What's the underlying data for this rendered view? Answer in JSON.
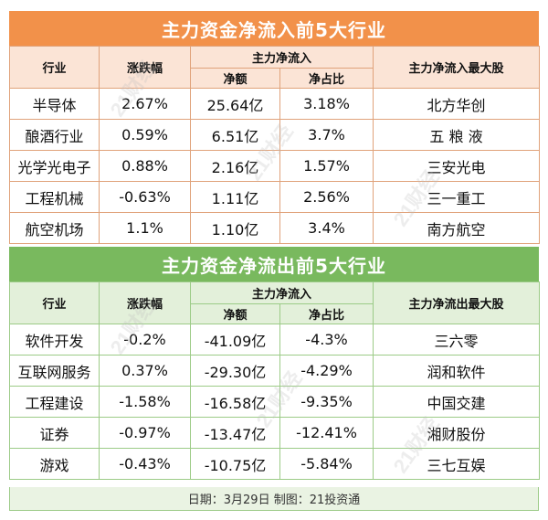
{
  "inflow": {
    "title": "主力资金净流入前5大行业",
    "headers": {
      "industry": "行业",
      "change": "涨跌幅",
      "main_flow": "主力净流入",
      "net_amount": "净额",
      "net_ratio": "净占比",
      "top_stock": "主力净流入最大股"
    },
    "rows": [
      {
        "industry": "半导体",
        "change": "2.67%",
        "amount": "25.64亿",
        "ratio": "3.18%",
        "stock": "北方华创"
      },
      {
        "industry": "酿酒行业",
        "change": "0.59%",
        "amount": "6.51亿",
        "ratio": "3.7%",
        "stock": "五 粮 液"
      },
      {
        "industry": "光学光电子",
        "change": "0.88%",
        "amount": "2.16亿",
        "ratio": "1.57%",
        "stock": "三安光电"
      },
      {
        "industry": "工程机械",
        "change": "-0.63%",
        "amount": "1.11亿",
        "ratio": "2.56%",
        "stock": "三一重工"
      },
      {
        "industry": "航空机场",
        "change": "1.1%",
        "amount": "1.10亿",
        "ratio": "3.4%",
        "stock": "南方航空"
      }
    ]
  },
  "outflow": {
    "title": "主力资金净流出前5大行业",
    "headers": {
      "industry": "行业",
      "change": "涨跌幅",
      "main_flow": "主力净流入",
      "net_amount": "净额",
      "net_ratio": "净占比",
      "top_stock": "主力净流出最大股"
    },
    "rows": [
      {
        "industry": "软件开发",
        "change": "-0.2%",
        "amount": "-41.09亿",
        "ratio": "-4.3%",
        "stock": "三六零"
      },
      {
        "industry": "互联网服务",
        "change": "0.37%",
        "amount": "-29.30亿",
        "ratio": "-4.29%",
        "stock": "润和软件"
      },
      {
        "industry": "工程建设",
        "change": "-1.58%",
        "amount": "-16.58亿",
        "ratio": "-9.35%",
        "stock": "中国交建"
      },
      {
        "industry": "证券",
        "change": "-0.97%",
        "amount": "-13.47亿",
        "ratio": "-12.41%",
        "stock": "湘财股份"
      },
      {
        "industry": "游戏",
        "change": "-0.43%",
        "amount": "-10.75亿",
        "ratio": "-5.84%",
        "stock": "三七互娱"
      }
    ]
  },
  "footer": "日期：3月29日 制图：21投资通",
  "watermark_text": "21财经",
  "colors": {
    "orange": "#f2914a",
    "green": "#79b95e"
  }
}
